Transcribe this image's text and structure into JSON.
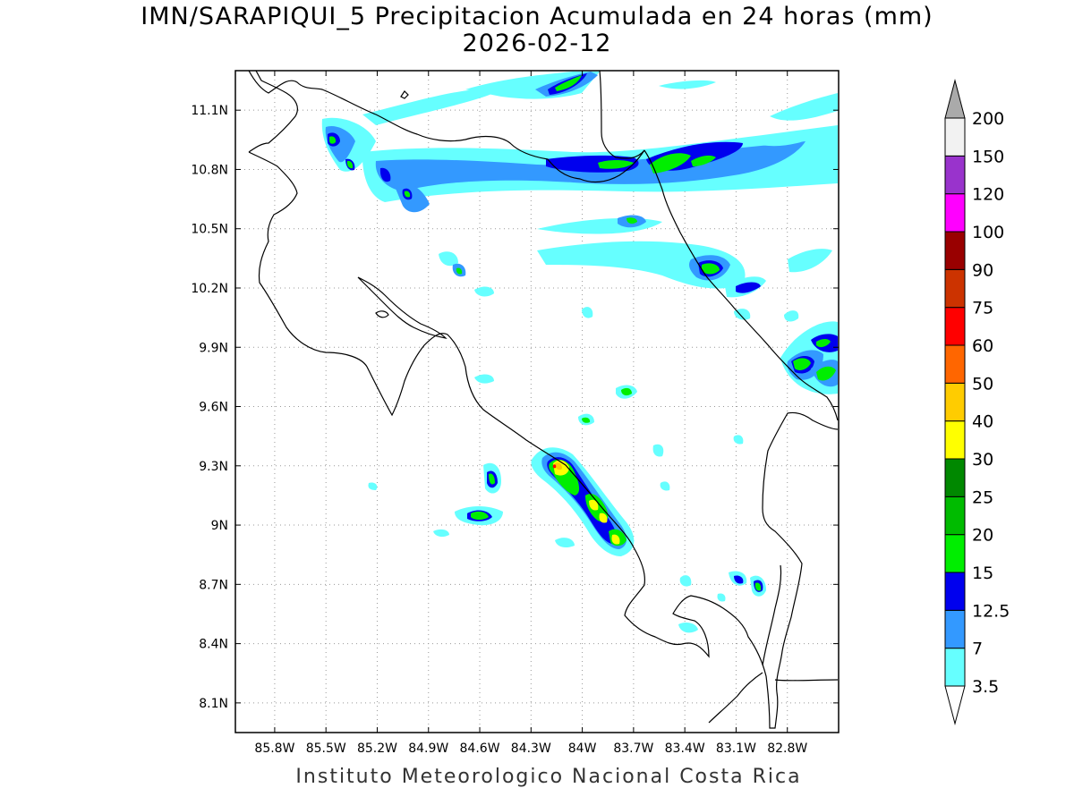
{
  "title": {
    "line1": "IMN/SARAPIQUI_5 Precipitacion Acumulada en 24 horas (mm)",
    "line2": "2026-02-12"
  },
  "footer": "Instituto Meteorologico Nacional Costa Rica",
  "map": {
    "lon_range": [
      -86.03,
      -82.5
    ],
    "lat_range": [
      7.95,
      11.3
    ],
    "lon_ticks": [
      "85.8W",
      "85.5W",
      "85.2W",
      "84.9W",
      "84.6W",
      "84.3W",
      "84W",
      "83.7W",
      "83.4W",
      "83.1W",
      "82.8W"
    ],
    "lon_values": [
      -85.8,
      -85.5,
      -85.2,
      -84.9,
      -84.6,
      -84.3,
      -84.0,
      -83.7,
      -83.4,
      -83.1,
      -82.8
    ],
    "lat_ticks": [
      "11.1N",
      "10.8N",
      "10.5N",
      "10.2N",
      "9.9N",
      "9.6N",
      "9.3N",
      "9N",
      "8.7N",
      "8.4N",
      "8.1N"
    ],
    "lat_values": [
      11.1,
      10.8,
      10.5,
      10.2,
      9.9,
      9.6,
      9.3,
      9.0,
      8.7,
      8.4,
      8.1
    ],
    "grid": "dotted"
  },
  "colorbar": {
    "labels": [
      "3.5",
      "7",
      "12.5",
      "15",
      "20",
      "25",
      "30",
      "40",
      "50",
      "60",
      "75",
      "90",
      "100",
      "120",
      "150",
      "200"
    ],
    "colors": [
      "#66ffff",
      "#3399ff",
      "#0000ee",
      "#00ee00",
      "#00bb00",
      "#008800",
      "#ffff00",
      "#ffcc00",
      "#ff6600",
      "#ff0000",
      "#cc3300",
      "#990000",
      "#ff00ff",
      "#9933cc",
      "#f2f2f2"
    ],
    "under_color": "#ffffff",
    "over_color": "#aaaaaa",
    "units": "mm"
  }
}
